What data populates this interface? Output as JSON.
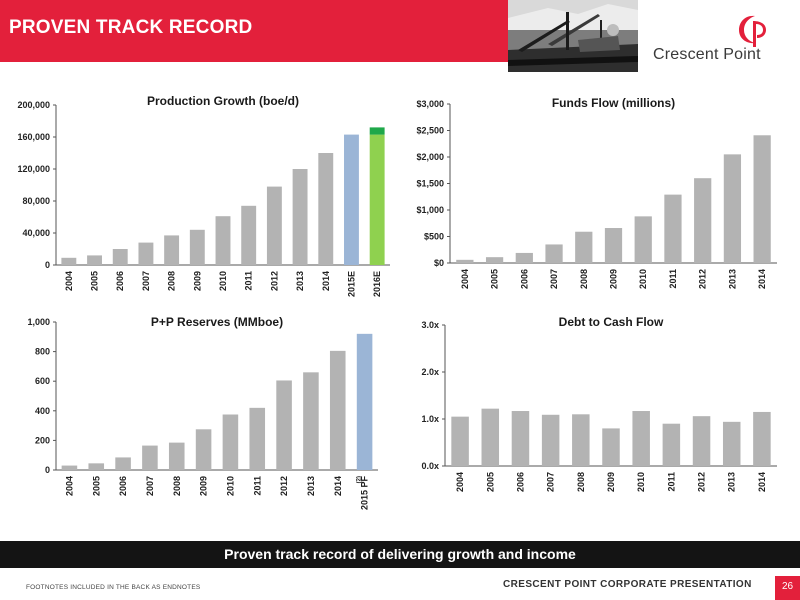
{
  "header": {
    "title": "PROVEN TRACK RECORD",
    "brand_color": "#e3203b"
  },
  "logo": {
    "name": "Crescent Point"
  },
  "banner": {
    "text": "Proven track record of delivering growth and income"
  },
  "footer": {
    "footnote": "FOOTNOTES INCLUDED IN THE BACK AS ENDNOTES",
    "presentation": "CRESCENT POINT CORPORATE PRESENTATION",
    "page": "26"
  },
  "chart_data": [
    {
      "id": "production",
      "type": "bar",
      "title": "Production Growth (boe/d)",
      "categories": [
        "2004",
        "2005",
        "2006",
        "2007",
        "2008",
        "2009",
        "2010",
        "2011",
        "2012",
        "2013",
        "2014",
        "2015E",
        "2016E"
      ],
      "values": [
        9000,
        12000,
        20000,
        28000,
        37000,
        44000,
        61000,
        74000,
        98000,
        120000,
        140000,
        163000,
        163000
      ],
      "stack_top": {
        "index": 12,
        "value": 9000
      },
      "bar_colors": [
        "#b3b3b3",
        "#b3b3b3",
        "#b3b3b3",
        "#b3b3b3",
        "#b3b3b3",
        "#b3b3b3",
        "#b3b3b3",
        "#b3b3b3",
        "#b3b3b3",
        "#b3b3b3",
        "#b3b3b3",
        "#9bb5d6",
        "#8fd14f"
      ],
      "stack_top_color": "#1fa84a",
      "ylim": [
        0,
        200000
      ],
      "yticks": [
        0,
        40000,
        80000,
        120000,
        160000,
        200000
      ],
      "ytick_labels": [
        "0",
        "40,000",
        "80,000",
        "120,000",
        "160,000",
        "200,000"
      ]
    },
    {
      "id": "funds",
      "type": "bar",
      "title": "Funds Flow (millions)",
      "categories": [
        "2004",
        "2005",
        "2006",
        "2007",
        "2008",
        "2009",
        "2010",
        "2011",
        "2012",
        "2013",
        "2014"
      ],
      "values": [
        60,
        110,
        190,
        350,
        590,
        660,
        880,
        1290,
        1600,
        2050,
        2410
      ],
      "bar_colors": [
        "#b3b3b3",
        "#b3b3b3",
        "#b3b3b3",
        "#b3b3b3",
        "#b3b3b3",
        "#b3b3b3",
        "#b3b3b3",
        "#b3b3b3",
        "#b3b3b3",
        "#b3b3b3",
        "#b3b3b3"
      ],
      "ylim": [
        0,
        3000
      ],
      "yticks": [
        0,
        500,
        1000,
        1500,
        2000,
        2500,
        3000
      ],
      "ytick_labels": [
        "$0",
        "$500",
        "$1,000",
        "$1,500",
        "$2,000",
        "$2,500",
        "$3,000"
      ]
    },
    {
      "id": "reserves",
      "type": "bar",
      "title": "P+P Reserves (MMboe)",
      "categories": [
        "2004",
        "2005",
        "2006",
        "2007",
        "2008",
        "2009",
        "2010",
        "2011",
        "2012",
        "2013",
        "2014",
        "2015 PF"
      ],
      "category_superscripts": {
        "11": "(2)"
      },
      "values": [
        30,
        45,
        85,
        165,
        185,
        275,
        375,
        420,
        605,
        660,
        805,
        920
      ],
      "bar_colors": [
        "#b3b3b3",
        "#b3b3b3",
        "#b3b3b3",
        "#b3b3b3",
        "#b3b3b3",
        "#b3b3b3",
        "#b3b3b3",
        "#b3b3b3",
        "#b3b3b3",
        "#b3b3b3",
        "#b3b3b3",
        "#9bb5d6"
      ],
      "ylim": [
        0,
        1000
      ],
      "yticks": [
        0,
        200,
        400,
        600,
        800,
        1000
      ],
      "ytick_labels": [
        "0",
        "200",
        "400",
        "600",
        "800",
        "1,000"
      ]
    },
    {
      "id": "debt",
      "type": "bar",
      "title": "Debt to Cash Flow",
      "categories": [
        "2004",
        "2005",
        "2006",
        "2007",
        "2008",
        "2009",
        "2010",
        "2011",
        "2012",
        "2013",
        "2014"
      ],
      "values": [
        1.05,
        1.22,
        1.17,
        1.09,
        1.1,
        0.8,
        1.17,
        0.9,
        1.06,
        0.94,
        1.15
      ],
      "bar_colors": [
        "#b3b3b3",
        "#b3b3b3",
        "#b3b3b3",
        "#b3b3b3",
        "#b3b3b3",
        "#b3b3b3",
        "#b3b3b3",
        "#b3b3b3",
        "#b3b3b3",
        "#b3b3b3",
        "#b3b3b3"
      ],
      "ylim": [
        0,
        3
      ],
      "yticks": [
        0,
        1,
        2,
        3
      ],
      "ytick_labels": [
        "0.0x",
        "1.0x",
        "2.0x",
        "3.0x"
      ]
    }
  ]
}
